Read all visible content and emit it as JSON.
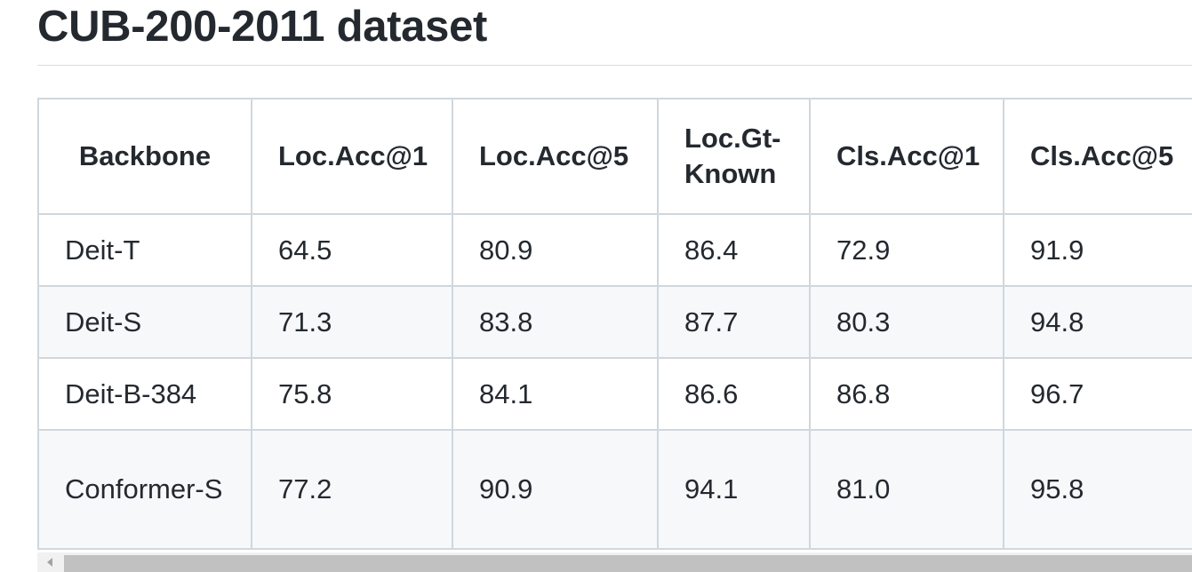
{
  "heading": "CUB-200-2011 dataset",
  "table": {
    "headers": [
      "Backbone",
      "Loc.Acc@1",
      "Loc.Acc@5",
      "Loc.Gt-Known",
      "Cls.Acc@1",
      "Cls.Acc@5"
    ],
    "rows": [
      [
        "Deit-T",
        "64.5",
        "80.9",
        "86.4",
        "72.9",
        "91.9"
      ],
      [
        "Deit-S",
        "71.3",
        "83.8",
        "87.7",
        "80.3",
        "94.8"
      ],
      [
        "Deit-B-384",
        "75.8",
        "84.1",
        "86.6",
        "86.8",
        "96.7"
      ],
      [
        "Conformer-S",
        "77.2",
        "90.9",
        "94.1",
        "81.0",
        "95.8"
      ]
    ]
  },
  "scrollbar": {
    "arrow_icon": "scroll-left-arrow-icon"
  }
}
